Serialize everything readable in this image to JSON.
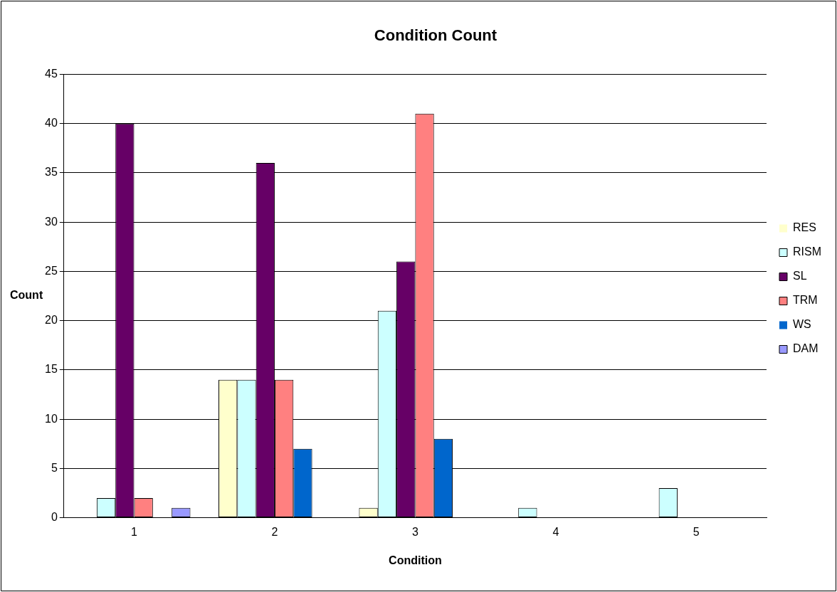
{
  "chart_data": {
    "type": "bar",
    "title": "Condition Count",
    "xlabel": "Condition",
    "ylabel": "Count",
    "categories": [
      "1",
      "2",
      "3",
      "4",
      "5"
    ],
    "series": [
      {
        "name": "RES",
        "color": "#ffffcc",
        "values": [
          0,
          14,
          1,
          0,
          0
        ]
      },
      {
        "name": "RISM",
        "color": "#ccffff",
        "values": [
          2,
          14,
          21,
          1,
          3
        ]
      },
      {
        "name": "SL",
        "color": "#660066",
        "values": [
          40,
          36,
          26,
          0,
          0
        ]
      },
      {
        "name": "TRM",
        "color": "#ff8080",
        "values": [
          2,
          14,
          41,
          0,
          0
        ]
      },
      {
        "name": "WS",
        "color": "#0066cc",
        "values": [
          0,
          7,
          8,
          0,
          0
        ]
      },
      {
        "name": "DAM",
        "color": "#9999ff",
        "values": [
          1,
          0,
          0,
          0,
          0
        ]
      }
    ],
    "ylim": [
      0,
      45
    ],
    "yticks": [
      0,
      5,
      10,
      15,
      20,
      25,
      30,
      35,
      40,
      45
    ],
    "grid": "y",
    "legend": "right"
  }
}
